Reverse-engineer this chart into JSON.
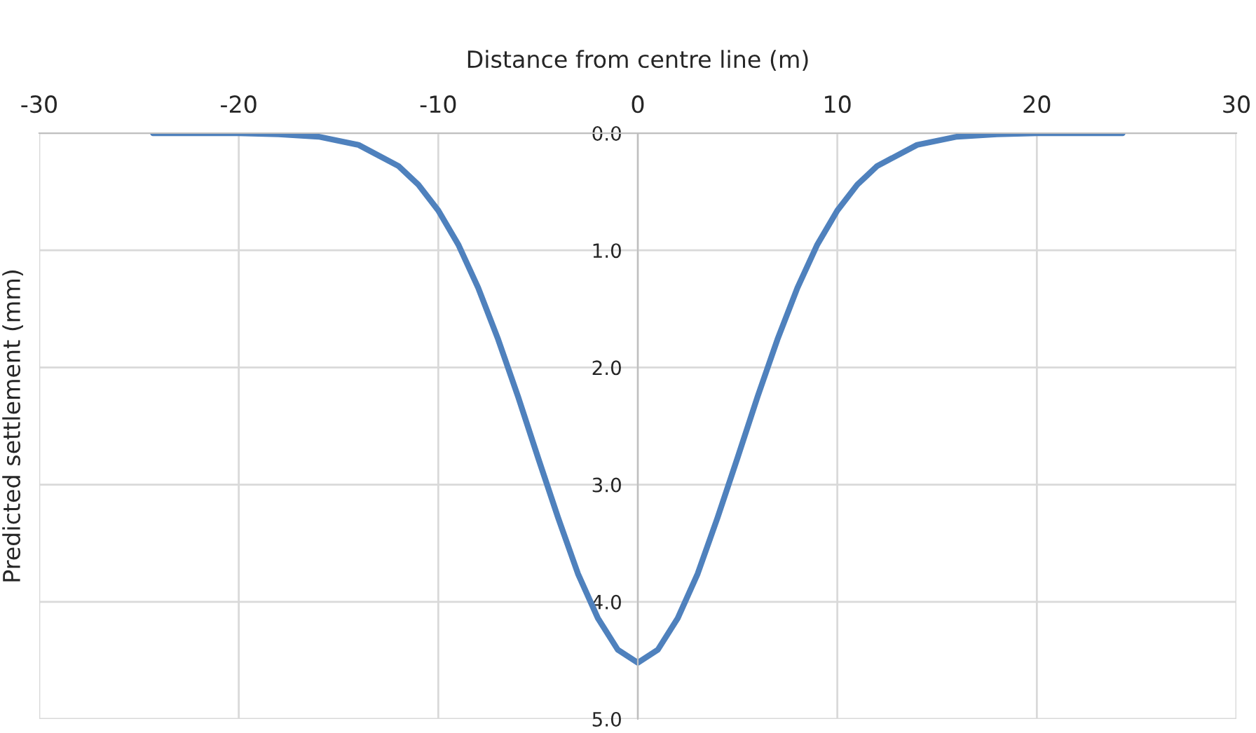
{
  "chart_data": {
    "type": "line",
    "xlabel": "Distance from centre line (m)",
    "ylabel": "Predicted settlement (mm)",
    "x": [
      -24.3,
      -22,
      -20,
      -18,
      -16,
      -14,
      -12,
      -11,
      -10,
      -9,
      -8,
      -7,
      -6,
      -5,
      -4,
      -3,
      -2,
      -1,
      0,
      1,
      2,
      3,
      4,
      5,
      6,
      7,
      8,
      9,
      10,
      11,
      12,
      14,
      16,
      18,
      20,
      22,
      24.3
    ],
    "series": [
      {
        "color": "#4f81bd",
        "values": [
          0.0,
          0.0,
          0.0,
          0.01,
          0.03,
          0.1,
          0.28,
          0.44,
          0.66,
          0.95,
          1.32,
          1.76,
          2.25,
          2.77,
          3.28,
          3.76,
          4.14,
          4.41,
          4.52,
          4.41,
          4.14,
          3.76,
          3.28,
          2.77,
          2.25,
          1.76,
          1.32,
          0.95,
          0.66,
          0.44,
          0.28,
          0.1,
          0.03,
          0.01,
          0.0,
          0.0,
          0.0
        ]
      }
    ],
    "xlim": [
      -30,
      30
    ],
    "xticks": [
      -30,
      -20,
      -10,
      0,
      10,
      20,
      30
    ],
    "ylim": [
      5.0,
      0.0
    ],
    "yticks": [
      {
        "value": 0,
        "label": "0.0"
      },
      {
        "value": 1,
        "label": "1.0"
      },
      {
        "value": 2,
        "label": "2.0"
      },
      {
        "value": 3,
        "label": "3.0"
      },
      {
        "value": 4,
        "label": "4.0"
      },
      {
        "value": 5,
        "label": "5.0"
      }
    ],
    "grid": true,
    "marker": "none",
    "line_style": "solid"
  }
}
